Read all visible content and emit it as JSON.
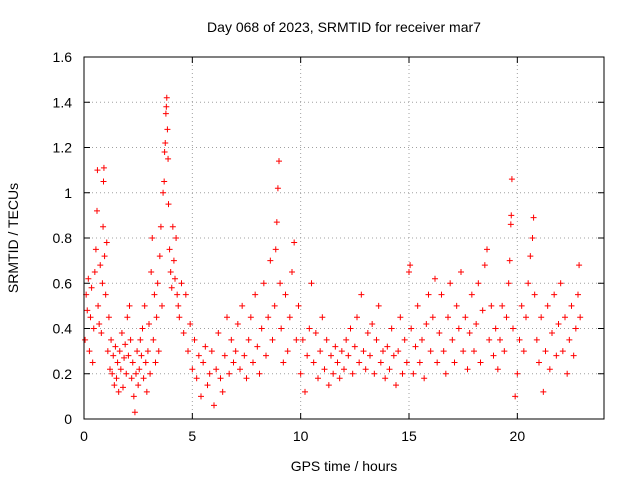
{
  "chart_data": {
    "type": "scatter",
    "title": "Day 068 of 2023, SRMTID for receiver mar7",
    "xlabel": "GPS time / hours",
    "ylabel": "SRMTID / TECUs",
    "xlim": [
      0,
      24
    ],
    "ylim": [
      0,
      1.6
    ],
    "x_ticks": [
      0,
      5,
      10,
      15,
      20
    ],
    "x_tick_labels": [
      "0",
      "5",
      "10",
      "15",
      "20"
    ],
    "y_ticks": [
      0,
      0.2,
      0.4,
      0.6,
      0.8,
      1,
      1.2,
      1.4,
      1.6
    ],
    "y_tick_labels": [
      "0",
      "0.2",
      "0.4",
      "0.6",
      "0.8",
      "1",
      "1.2",
      "1.4",
      "1.6"
    ],
    "grid": true,
    "marker": "plus",
    "color": "#ff0000",
    "series": [
      {
        "name": "SRMTID",
        "points": [
          [
            0.05,
            0.35
          ],
          [
            0.1,
            0.55
          ],
          [
            0.15,
            0.48
          ],
          [
            0.2,
            0.62
          ],
          [
            0.25,
            0.3
          ],
          [
            0.3,
            0.45
          ],
          [
            0.35,
            0.58
          ],
          [
            0.4,
            0.25
          ],
          [
            0.45,
            0.4
          ],
          [
            0.5,
            0.65
          ],
          [
            0.55,
            0.75
          ],
          [
            0.6,
            0.92
          ],
          [
            0.62,
            1.1
          ],
          [
            0.65,
            0.5
          ],
          [
            0.7,
            0.42
          ],
          [
            0.75,
            0.68
          ],
          [
            0.8,
            0.38
          ],
          [
            0.85,
            0.6
          ],
          [
            0.88,
            0.85
          ],
          [
            0.9,
            1.05
          ],
          [
            0.92,
            1.11
          ],
          [
            0.95,
            0.72
          ],
          [
            1.0,
            0.55
          ],
          [
            1.05,
            0.78
          ],
          [
            1.1,
            0.3
          ],
          [
            1.15,
            0.45
          ],
          [
            1.2,
            0.22
          ],
          [
            1.25,
            0.35
          ],
          [
            1.3,
            0.2
          ],
          [
            1.35,
            0.28
          ],
          [
            1.4,
            0.15
          ],
          [
            1.45,
            0.32
          ],
          [
            1.5,
            0.18
          ],
          [
            1.55,
            0.25
          ],
          [
            1.6,
            0.12
          ],
          [
            1.65,
            0.3
          ],
          [
            1.7,
            0.22
          ],
          [
            1.75,
            0.38
          ],
          [
            1.8,
            0.14
          ],
          [
            1.85,
            0.27
          ],
          [
            1.9,
            0.33
          ],
          [
            1.95,
            0.2
          ],
          [
            2.0,
            0.45
          ],
          [
            2.05,
            0.28
          ],
          [
            2.1,
            0.5
          ],
          [
            2.15,
            0.35
          ],
          [
            2.2,
            0.18
          ],
          [
            2.25,
            0.25
          ],
          [
            2.3,
            0.1
          ],
          [
            2.35,
            0.03
          ],
          [
            2.4,
            0.2
          ],
          [
            2.45,
            0.3
          ],
          [
            2.5,
            0.15
          ],
          [
            2.55,
            0.22
          ],
          [
            2.6,
            0.35
          ],
          [
            2.65,
            0.28
          ],
          [
            2.7,
            0.4
          ],
          [
            2.75,
            0.18
          ],
          [
            2.8,
            0.5
          ],
          [
            2.85,
            0.25
          ],
          [
            2.9,
            0.12
          ],
          [
            2.95,
            0.3
          ],
          [
            3.0,
            0.42
          ],
          [
            3.05,
            0.2
          ],
          [
            3.1,
            0.65
          ],
          [
            3.15,
            0.8
          ],
          [
            3.2,
            0.35
          ],
          [
            3.25,
            0.55
          ],
          [
            3.3,
            0.25
          ],
          [
            3.35,
            0.45
          ],
          [
            3.4,
            0.6
          ],
          [
            3.45,
            0.3
          ],
          [
            3.5,
            0.72
          ],
          [
            3.55,
            0.85
          ],
          [
            3.6,
            0.5
          ],
          [
            3.65,
            1.0
          ],
          [
            3.7,
            1.05
          ],
          [
            3.72,
            1.18
          ],
          [
            3.75,
            1.22
          ],
          [
            3.78,
            1.35
          ],
          [
            3.8,
            1.38
          ],
          [
            3.82,
            1.42
          ],
          [
            3.85,
            1.28
          ],
          [
            3.88,
            1.15
          ],
          [
            3.9,
            0.95
          ],
          [
            3.95,
            0.75
          ],
          [
            4.0,
            0.65
          ],
          [
            4.05,
            0.58
          ],
          [
            4.1,
            0.85
          ],
          [
            4.15,
            0.7
          ],
          [
            4.2,
            0.62
          ],
          [
            4.25,
            0.8
          ],
          [
            4.3,
            0.55
          ],
          [
            4.35,
            0.5
          ],
          [
            4.4,
            0.45
          ],
          [
            4.5,
            0.6
          ],
          [
            4.6,
            0.38
          ],
          [
            4.7,
            0.55
          ],
          [
            4.8,
            0.3
          ],
          [
            4.9,
            0.42
          ],
          [
            5.0,
            0.22
          ],
          [
            5.1,
            0.35
          ],
          [
            5.2,
            0.18
          ],
          [
            5.3,
            0.28
          ],
          [
            5.4,
            0.1
          ],
          [
            5.5,
            0.25
          ],
          [
            5.6,
            0.32
          ],
          [
            5.7,
            0.15
          ],
          [
            5.8,
            0.2
          ],
          [
            5.9,
            0.3
          ],
          [
            6.0,
            0.06
          ],
          [
            6.1,
            0.22
          ],
          [
            6.2,
            0.38
          ],
          [
            6.3,
            0.18
          ],
          [
            6.4,
            0.12
          ],
          [
            6.5,
            0.28
          ],
          [
            6.6,
            0.45
          ],
          [
            6.7,
            0.2
          ],
          [
            6.8,
            0.35
          ],
          [
            6.9,
            0.25
          ],
          [
            7.0,
            0.3
          ],
          [
            7.1,
            0.42
          ],
          [
            7.2,
            0.22
          ],
          [
            7.3,
            0.5
          ],
          [
            7.4,
            0.28
          ],
          [
            7.5,
            0.18
          ],
          [
            7.6,
            0.35
          ],
          [
            7.7,
            0.45
          ],
          [
            7.8,
            0.25
          ],
          [
            7.9,
            0.55
          ],
          [
            8.0,
            0.32
          ],
          [
            8.1,
            0.2
          ],
          [
            8.2,
            0.4
          ],
          [
            8.3,
            0.6
          ],
          [
            8.4,
            0.28
          ],
          [
            8.5,
            0.45
          ],
          [
            8.6,
            0.7
          ],
          [
            8.7,
            0.35
          ],
          [
            8.8,
            0.5
          ],
          [
            8.85,
            0.75
          ],
          [
            8.9,
            0.87
          ],
          [
            8.95,
            1.02
          ],
          [
            9.0,
            1.14
          ],
          [
            9.05,
            0.6
          ],
          [
            9.1,
            0.4
          ],
          [
            9.2,
            0.25
          ],
          [
            9.3,
            0.55
          ],
          [
            9.4,
            0.3
          ],
          [
            9.5,
            0.45
          ],
          [
            9.6,
            0.65
          ],
          [
            9.7,
            0.78
          ],
          [
            9.8,
            0.35
          ],
          [
            9.9,
            0.5
          ],
          [
            10.0,
            0.2
          ],
          [
            10.1,
            0.35
          ],
          [
            10.2,
            0.12
          ],
          [
            10.3,
            0.28
          ],
          [
            10.4,
            0.4
          ],
          [
            10.5,
            0.6
          ],
          [
            10.6,
            0.25
          ],
          [
            10.7,
            0.38
          ],
          [
            10.8,
            0.18
          ],
          [
            10.9,
            0.3
          ],
          [
            11.0,
            0.45
          ],
          [
            11.1,
            0.22
          ],
          [
            11.2,
            0.35
          ],
          [
            11.3,
            0.15
          ],
          [
            11.4,
            0.28
          ],
          [
            11.5,
            0.2
          ],
          [
            11.6,
            0.32
          ],
          [
            11.7,
            0.25
          ],
          [
            11.8,
            0.18
          ],
          [
            11.9,
            0.3
          ],
          [
            12.0,
            0.22
          ],
          [
            12.1,
            0.35
          ],
          [
            12.2,
            0.28
          ],
          [
            12.3,
            0.4
          ],
          [
            12.4,
            0.2
          ],
          [
            12.5,
            0.32
          ],
          [
            12.6,
            0.45
          ],
          [
            12.7,
            0.25
          ],
          [
            12.8,
            0.55
          ],
          [
            12.9,
            0.3
          ],
          [
            13.0,
            0.22
          ],
          [
            13.1,
            0.38
          ],
          [
            13.2,
            0.28
          ],
          [
            13.3,
            0.42
          ],
          [
            13.4,
            0.2
          ],
          [
            13.5,
            0.35
          ],
          [
            13.6,
            0.5
          ],
          [
            13.7,
            0.25
          ],
          [
            13.8,
            0.3
          ],
          [
            13.9,
            0.18
          ],
          [
            14.0,
            0.32
          ],
          [
            14.1,
            0.22
          ],
          [
            14.2,
            0.4
          ],
          [
            14.3,
            0.28
          ],
          [
            14.4,
            0.15
          ],
          [
            14.5,
            0.3
          ],
          [
            14.6,
            0.45
          ],
          [
            14.7,
            0.2
          ],
          [
            14.8,
            0.35
          ],
          [
            14.9,
            0.25
          ],
          [
            15.0,
            0.65
          ],
          [
            15.05,
            0.68
          ],
          [
            15.1,
            0.4
          ],
          [
            15.2,
            0.2
          ],
          [
            15.3,
            0.32
          ],
          [
            15.4,
            0.5
          ],
          [
            15.5,
            0.25
          ],
          [
            15.6,
            0.35
          ],
          [
            15.7,
            0.18
          ],
          [
            15.8,
            0.42
          ],
          [
            15.9,
            0.55
          ],
          [
            16.0,
            0.3
          ],
          [
            16.1,
            0.45
          ],
          [
            16.2,
            0.62
          ],
          [
            16.3,
            0.25
          ],
          [
            16.4,
            0.38
          ],
          [
            16.5,
            0.55
          ],
          [
            16.6,
            0.3
          ],
          [
            16.7,
            0.2
          ],
          [
            16.8,
            0.45
          ],
          [
            16.9,
            0.6
          ],
          [
            17.0,
            0.35
          ],
          [
            17.1,
            0.25
          ],
          [
            17.2,
            0.5
          ],
          [
            17.3,
            0.4
          ],
          [
            17.4,
            0.65
          ],
          [
            17.5,
            0.3
          ],
          [
            17.6,
            0.45
          ],
          [
            17.7,
            0.22
          ],
          [
            17.8,
            0.38
          ],
          [
            17.9,
            0.55
          ],
          [
            18.0,
            0.3
          ],
          [
            18.1,
            0.42
          ],
          [
            18.2,
            0.6
          ],
          [
            18.3,
            0.25
          ],
          [
            18.4,
            0.48
          ],
          [
            18.5,
            0.68
          ],
          [
            18.6,
            0.75
          ],
          [
            18.7,
            0.35
          ],
          [
            18.8,
            0.5
          ],
          [
            18.9,
            0.28
          ],
          [
            19.0,
            0.4
          ],
          [
            19.1,
            0.22
          ],
          [
            19.2,
            0.35
          ],
          [
            19.3,
            0.5
          ],
          [
            19.4,
            0.3
          ],
          [
            19.5,
            0.45
          ],
          [
            19.6,
            0.6
          ],
          [
            19.65,
            0.7
          ],
          [
            19.7,
            0.86
          ],
          [
            19.72,
            0.9
          ],
          [
            19.75,
            1.06
          ],
          [
            19.8,
            0.4
          ],
          [
            19.9,
            0.1
          ],
          [
            20.0,
            0.2
          ],
          [
            20.1,
            0.35
          ],
          [
            20.2,
            0.5
          ],
          [
            20.3,
            0.3
          ],
          [
            20.4,
            0.45
          ],
          [
            20.5,
            0.6
          ],
          [
            20.6,
            0.72
          ],
          [
            20.7,
            0.8
          ],
          [
            20.75,
            0.89
          ],
          [
            20.8,
            0.55
          ],
          [
            20.9,
            0.35
          ],
          [
            21.0,
            0.25
          ],
          [
            21.1,
            0.45
          ],
          [
            21.2,
            0.12
          ],
          [
            21.3,
            0.3
          ],
          [
            21.4,
            0.5
          ],
          [
            21.5,
            0.22
          ],
          [
            21.6,
            0.38
          ],
          [
            21.7,
            0.55
          ],
          [
            21.8,
            0.28
          ],
          [
            21.9,
            0.42
          ],
          [
            22.0,
            0.6
          ],
          [
            22.1,
            0.3
          ],
          [
            22.2,
            0.45
          ],
          [
            22.3,
            0.2
          ],
          [
            22.4,
            0.35
          ],
          [
            22.5,
            0.5
          ],
          [
            22.6,
            0.28
          ],
          [
            22.7,
            0.4
          ],
          [
            22.8,
            0.55
          ],
          [
            22.85,
            0.68
          ],
          [
            22.9,
            0.45
          ]
        ]
      }
    ]
  }
}
